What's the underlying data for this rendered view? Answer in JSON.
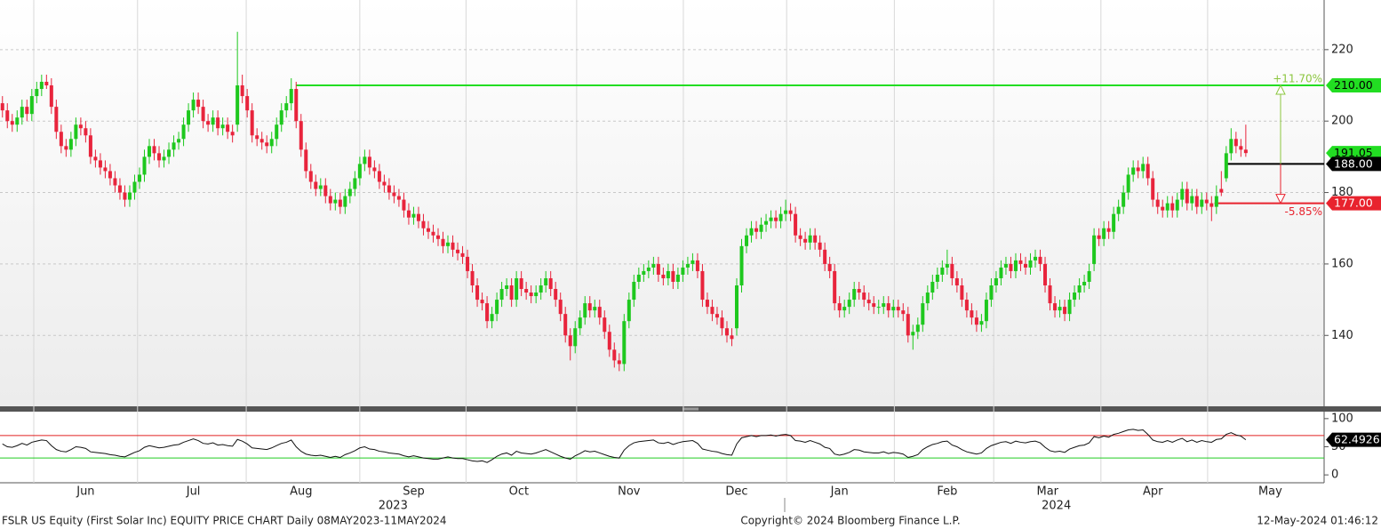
{
  "chart_data": {
    "type": "candlestick",
    "footer_left": "FSLR US Equity (First Solar Inc) EQUITY PRICE CHART  Daily 08MAY2023-11MAY2024",
    "footer_center": "Copyright© 2024 Bloomberg Finance L.P.",
    "footer_right": "12-May-2024 01:46:12",
    "colors": {
      "up": "#1ec81e",
      "down": "#e8243c"
    },
    "xlim": [
      -0.5,
      270
    ],
    "ylim": [
      120.4,
      233.9
    ],
    "yticks": [
      140,
      160,
      180,
      200,
      220
    ],
    "grid": true,
    "xticks": [
      {
        "value": 17,
        "label": "Jun"
      },
      {
        "value": 39,
        "label": "Jul"
      },
      {
        "value": 61,
        "label": "Aug"
      },
      {
        "value": 84,
        "label": "Sep"
      },
      {
        "value": 105.5,
        "label": "Oct"
      },
      {
        "value": 128,
        "label": "Nov"
      },
      {
        "value": 150,
        "label": "Dec"
      },
      {
        "value": 171,
        "label": "Jan"
      },
      {
        "value": 193,
        "label": "Feb"
      },
      {
        "value": 213.5,
        "label": "Mar"
      },
      {
        "value": 235,
        "label": "Apr"
      },
      {
        "value": 259,
        "label": "May"
      }
    ],
    "xgrid": [
      6.4,
      27.6,
      49.8,
      73,
      94.7,
      117.3,
      139.1,
      160.2,
      182.2,
      202.5,
      224.4,
      246.2
    ],
    "year_labels": [
      {
        "value": 79.8,
        "label": "2023"
      },
      {
        "value": 215.3,
        "label": "2024"
      }
    ],
    "open": [
      205,
      203,
      200,
      199,
      201,
      204,
      202,
      207,
      209,
      211,
      210,
      204,
      197,
      193,
      192,
      195,
      199,
      198,
      196,
      190,
      189,
      187,
      186,
      184,
      182,
      180,
      178,
      180,
      183,
      185,
      190,
      193,
      191,
      189,
      190,
      192,
      194,
      195,
      199,
      203,
      206,
      204,
      200,
      199,
      201,
      198,
      199,
      197,
      199,
      210,
      207,
      203,
      196,
      195,
      194,
      193,
      195,
      199,
      203,
      205,
      209,
      200,
      192,
      186,
      183,
      181,
      182,
      179,
      177,
      178,
      176,
      179,
      181,
      184,
      188,
      190,
      187,
      186,
      183,
      182,
      180,
      179,
      178,
      175,
      173,
      174,
      172,
      170,
      169,
      168,
      167,
      165,
      166,
      164,
      163,
      162,
      158,
      154,
      150,
      149,
      144,
      146,
      150,
      153,
      154,
      150,
      156,
      153,
      152,
      151,
      152,
      154,
      156,
      153,
      150,
      146,
      140,
      137,
      142,
      145,
      149,
      147,
      148,
      145,
      141,
      136,
      133,
      132,
      144,
      150,
      155,
      157,
      158,
      159,
      160,
      157,
      156,
      158,
      155,
      157,
      159,
      160,
      161,
      158,
      150,
      148,
      146,
      145,
      142,
      140,
      142,
      154,
      165,
      168,
      170,
      169,
      171,
      172,
      173,
      172,
      174,
      175,
      174,
      168,
      167,
      166,
      168,
      166,
      164,
      160,
      158,
      149,
      147,
      148,
      150,
      153,
      152,
      150,
      149,
      148,
      148,
      149,
      147,
      148,
      147,
      146,
      140,
      141,
      143,
      149,
      152,
      155,
      157,
      159,
      160,
      156,
      154,
      150,
      147,
      145,
      143,
      144,
      150,
      154,
      156,
      159,
      160,
      158,
      161,
      160,
      159,
      161,
      162,
      160,
      154,
      149,
      147,
      148,
      146,
      150,
      152,
      154,
      155,
      160,
      168,
      167,
      170,
      169,
      174,
      176,
      180,
      185,
      187,
      186,
      188,
      184,
      178,
      176,
      175,
      177,
      175,
      178,
      181,
      177,
      179,
      176,
      178,
      177,
      176,
      181,
      184,
      191,
      195,
      193,
      192
    ],
    "high": [
      207,
      205,
      202,
      203,
      206,
      206,
      209,
      211,
      213,
      213,
      212,
      206,
      199,
      195,
      197,
      201,
      201,
      200,
      198,
      192,
      191,
      189,
      188,
      186,
      184,
      182,
      182,
      185,
      187,
      192,
      195,
      195,
      193,
      192,
      194,
      196,
      197,
      201,
      205,
      208,
      208,
      206,
      202,
      203,
      203,
      201,
      201,
      199,
      225,
      213,
      209,
      205,
      198,
      197,
      196,
      197,
      201,
      205,
      207,
      212,
      211,
      202,
      194,
      188,
      185,
      184,
      184,
      181,
      180,
      180,
      181,
      183,
      186,
      190,
      192,
      192,
      189,
      188,
      185,
      184,
      182,
      181,
      180,
      177,
      176,
      176,
      174,
      172,
      171,
      170,
      169,
      168,
      168,
      166,
      165,
      164,
      160,
      156,
      152,
      151,
      148,
      152,
      155,
      156,
      156,
      158,
      158,
      155,
      154,
      154,
      156,
      158,
      158,
      155,
      152,
      148,
      142,
      144,
      147,
      151,
      151,
      150,
      150,
      147,
      143,
      138,
      135,
      146,
      152,
      157,
      159,
      160,
      161,
      162,
      162,
      159,
      160,
      160,
      159,
      161,
      162,
      163,
      163,
      160,
      152,
      150,
      148,
      147,
      144,
      142,
      156,
      167,
      170,
      172,
      172,
      173,
      174,
      175,
      175,
      176,
      178,
      177,
      176,
      170,
      169,
      170,
      170,
      168,
      166,
      162,
      160,
      151,
      150,
      152,
      155,
      155,
      154,
      152,
      151,
      150,
      151,
      151,
      150,
      150,
      149,
      148,
      143,
      145,
      151,
      154,
      157,
      159,
      161,
      164,
      162,
      158,
      156,
      152,
      149,
      147,
      146,
      152,
      156,
      158,
      161,
      162,
      162,
      163,
      163,
      162,
      163,
      164,
      164,
      162,
      156,
      151,
      150,
      150,
      152,
      154,
      156,
      157,
      160,
      170,
      170,
      172,
      172,
      176,
      178,
      182,
      187,
      189,
      189,
      190,
      190,
      186,
      180,
      178,
      179,
      179,
      180,
      183,
      183,
      181,
      181,
      180,
      180,
      179,
      182,
      186,
      193,
      198,
      197,
      195,
      199
    ],
    "low": [
      201,
      198,
      197,
      197,
      199,
      200,
      200,
      205,
      207,
      209,
      202,
      195,
      191,
      190,
      190,
      193,
      196,
      194,
      188,
      187,
      185,
      184,
      182,
      180,
      178,
      176,
      176,
      178,
      181,
      183,
      188,
      189,
      187,
      187,
      188,
      190,
      192,
      193,
      197,
      201,
      202,
      198,
      197,
      197,
      196,
      196,
      195,
      194,
      197,
      205,
      201,
      194,
      193,
      192,
      191,
      191,
      193,
      197,
      201,
      203,
      198,
      190,
      184,
      181,
      179,
      179,
      177,
      175,
      175,
      174,
      174,
      177,
      179,
      182,
      186,
      185,
      184,
      181,
      180,
      178,
      177,
      176,
      173,
      171,
      171,
      170,
      168,
      167,
      166,
      165,
      163,
      163,
      162,
      161,
      160,
      156,
      152,
      148,
      147,
      142,
      142,
      144,
      148,
      151,
      148,
      148,
      151,
      150,
      149,
      149,
      150,
      152,
      151,
      148,
      144,
      138,
      133,
      135,
      140,
      143,
      145,
      145,
      143,
      139,
      134,
      131,
      130,
      130,
      142,
      148,
      153,
      155,
      156,
      157,
      155,
      154,
      154,
      153,
      153,
      155,
      157,
      158,
      156,
      148,
      146,
      144,
      143,
      140,
      138,
      137,
      140,
      152,
      163,
      166,
      167,
      167,
      169,
      170,
      170,
      170,
      172,
      172,
      166,
      165,
      164,
      164,
      164,
      162,
      158,
      156,
      147,
      145,
      145,
      146,
      148,
      150,
      148,
      147,
      146,
      146,
      146,
      145,
      145,
      145,
      144,
      138,
      136,
      139,
      141,
      147,
      150,
      153,
      155,
      157,
      154,
      152,
      148,
      145,
      143,
      141,
      141,
      142,
      148,
      152,
      154,
      157,
      156,
      156,
      158,
      157,
      157,
      159,
      158,
      152,
      147,
      145,
      145,
      144,
      144,
      148,
      150,
      152,
      153,
      158,
      165,
      165,
      167,
      167,
      172,
      174,
      178,
      183,
      184,
      184,
      182,
      176,
      174,
      173,
      173,
      173,
      173,
      176,
      175,
      175,
      174,
      174,
      175,
      172,
      174,
      179,
      183,
      189,
      191,
      190,
      190
    ],
    "close": [
      203,
      200,
      199,
      201,
      204,
      202,
      207,
      209,
      211,
      210,
      204,
      197,
      193,
      192,
      195,
      199,
      198,
      196,
      190,
      189,
      187,
      186,
      184,
      182,
      180,
      178,
      180,
      183,
      185,
      190,
      193,
      191,
      189,
      190,
      192,
      194,
      195,
      199,
      203,
      206,
      204,
      200,
      199,
      201,
      198,
      199,
      197,
      196,
      210,
      207,
      203,
      196,
      195,
      194,
      193,
      195,
      199,
      203,
      205,
      209,
      200,
      192,
      186,
      183,
      181,
      182,
      179,
      177,
      178,
      176,
      179,
      181,
      184,
      188,
      190,
      187,
      186,
      183,
      182,
      180,
      179,
      178,
      175,
      173,
      174,
      172,
      170,
      169,
      168,
      167,
      165,
      166,
      164,
      163,
      162,
      158,
      154,
      150,
      149,
      144,
      146,
      150,
      153,
      154,
      150,
      156,
      153,
      152,
      151,
      152,
      154,
      156,
      153,
      150,
      146,
      140,
      137,
      142,
      145,
      149,
      147,
      148,
      145,
      141,
      136,
      133,
      132,
      144,
      150,
      155,
      157,
      158,
      159,
      160,
      157,
      156,
      158,
      155,
      157,
      159,
      160,
      161,
      158,
      150,
      148,
      146,
      145,
      142,
      140,
      139,
      154,
      165,
      168,
      170,
      169,
      171,
      172,
      173,
      172,
      174,
      175,
      174,
      168,
      167,
      166,
      168,
      166,
      164,
      160,
      158,
      149,
      147,
      148,
      150,
      153,
      152,
      150,
      149,
      148,
      148,
      149,
      147,
      148,
      147,
      146,
      140,
      141,
      143,
      149,
      152,
      155,
      157,
      159,
      160,
      156,
      154,
      150,
      147,
      145,
      143,
      144,
      150,
      154,
      156,
      159,
      160,
      158,
      161,
      160,
      159,
      161,
      162,
      160,
      154,
      149,
      147,
      148,
      146,
      150,
      152,
      154,
      155,
      158,
      168,
      167,
      170,
      169,
      174,
      176,
      180,
      185,
      187,
      186,
      188,
      184,
      178,
      176,
      175,
      177,
      175,
      178,
      181,
      177,
      179,
      176,
      178,
      177,
      176,
      179,
      180,
      191,
      195,
      193,
      192,
      191.05
    ],
    "levels": [
      {
        "value": 210,
        "label": "210.00",
        "x": 60,
        "color": "#22dd22",
        "text_color": "#000000",
        "change": {
          "value": 11.7,
          "label": "+11.70%",
          "color": "#8cc63f"
        }
      },
      {
        "value": 188,
        "label": "188.00",
        "x": 249.7,
        "color": "#000000",
        "text_color": "#ffffff"
      },
      {
        "value": 177,
        "label": "177.00",
        "x": 247.6,
        "color": "#e8232e",
        "text_color": "#ffffff",
        "change": {
          "value": -5.85,
          "label": "-5.85%",
          "color": "#e8232e"
        }
      }
    ],
    "last_color": "#22dd22",
    "indicator": {
      "type": "line",
      "color": "#111111",
      "ylim": [
        -14,
        114
      ],
      "yticks": [
        0,
        50,
        100
      ],
      "bands": [
        {
          "value": 70,
          "color": "#e02020"
        },
        {
          "value": 30,
          "color": "#22cc22"
        }
      ],
      "values": [
        55,
        50,
        49,
        52,
        56,
        53,
        58,
        60,
        62,
        61,
        52,
        45,
        42,
        41,
        45,
        50,
        49,
        47,
        41,
        40,
        39,
        38,
        36,
        35,
        33,
        32,
        36,
        40,
        43,
        49,
        52,
        50,
        48,
        49,
        51,
        53,
        54,
        58,
        61,
        64,
        61,
        56,
        55,
        57,
        53,
        54,
        52,
        51,
        63,
        60,
        55,
        48,
        47,
        46,
        45,
        48,
        52,
        56,
        58,
        62,
        50,
        42,
        37,
        35,
        34,
        35,
        33,
        31,
        33,
        31,
        36,
        39,
        43,
        48,
        50,
        46,
        45,
        42,
        41,
        39,
        38,
        37,
        34,
        32,
        34,
        32,
        30,
        29,
        28,
        28,
        30,
        32,
        30,
        29,
        29,
        27,
        25,
        24,
        25,
        22,
        27,
        33,
        37,
        39,
        35,
        42,
        39,
        38,
        37,
        39,
        42,
        45,
        41,
        37,
        33,
        30,
        28,
        34,
        38,
        43,
        41,
        42,
        39,
        36,
        33,
        31,
        30,
        44,
        52,
        57,
        59,
        60,
        61,
        62,
        57,
        56,
        58,
        54,
        57,
        59,
        60,
        61,
        56,
        46,
        44,
        42,
        41,
        38,
        36,
        35,
        55,
        66,
        68,
        70,
        68,
        70,
        70,
        71,
        69,
        71,
        72,
        70,
        61,
        60,
        58,
        61,
        58,
        55,
        49,
        47,
        37,
        35,
        37,
        40,
        45,
        44,
        41,
        40,
        39,
        39,
        41,
        38,
        40,
        39,
        37,
        31,
        33,
        36,
        45,
        50,
        54,
        56,
        59,
        60,
        53,
        50,
        45,
        41,
        39,
        37,
        39,
        47,
        52,
        55,
        58,
        59,
        56,
        60,
        58,
        57,
        59,
        60,
        57,
        49,
        43,
        41,
        42,
        40,
        46,
        49,
        52,
        53,
        57,
        68,
        66,
        69,
        67,
        72,
        74,
        77,
        80,
        81,
        79,
        80,
        72,
        62,
        59,
        58,
        61,
        58,
        62,
        65,
        59,
        62,
        58,
        61,
        59,
        58,
        63,
        64,
        72,
        75,
        71,
        69,
        62.4926
      ]
    }
  }
}
